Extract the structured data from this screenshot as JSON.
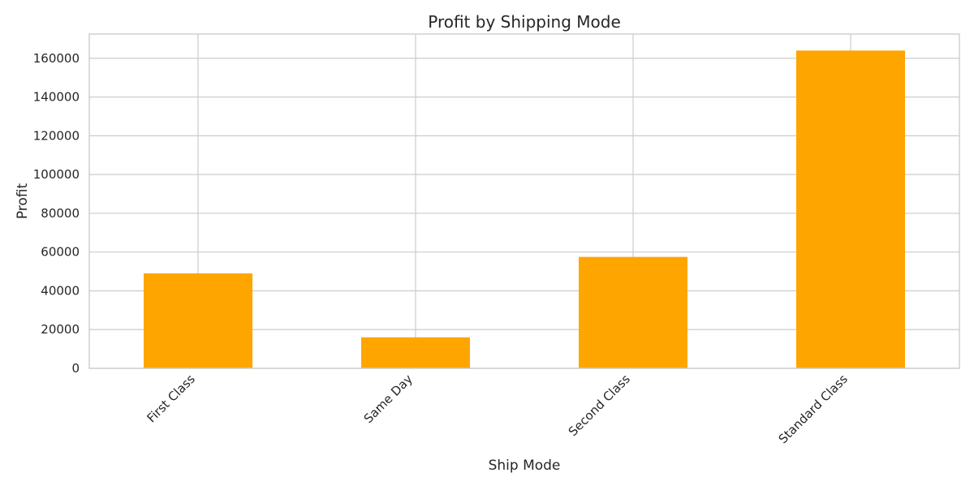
{
  "chart_data": {
    "type": "bar",
    "title": "Profit by Shipping Mode",
    "xlabel": "Ship Mode",
    "ylabel": "Profit",
    "categories": [
      "First Class",
      "Same Day",
      "Second Class",
      "Standard Class"
    ],
    "values": [
      49000,
      16000,
      57500,
      164000
    ],
    "ylim": [
      0,
      172500
    ],
    "yticks": [
      0,
      20000,
      40000,
      60000,
      80000,
      100000,
      120000,
      140000,
      160000
    ],
    "ytick_labels": [
      "0",
      "20000",
      "40000",
      "60000",
      "80000",
      "100000",
      "120000",
      "140000",
      "160000"
    ],
    "grid": true,
    "x_tick_rotation": 45,
    "bar_color": "#ffa500",
    "grid_color": "#cccccc"
  }
}
